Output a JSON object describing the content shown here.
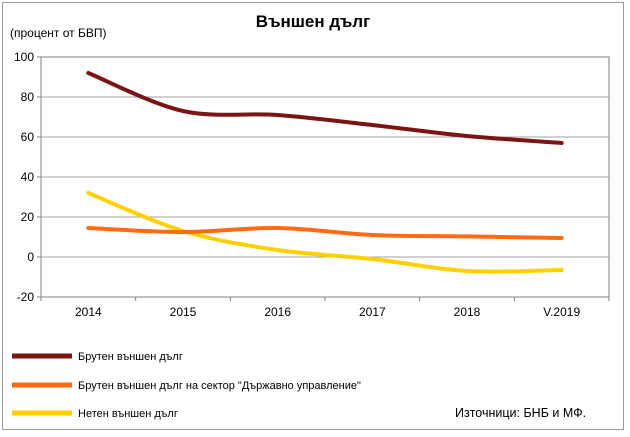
{
  "chart_data": {
    "type": "line",
    "title": "Външен дълг",
    "ylabel": "(процент от БВП)",
    "categories": [
      "2014",
      "2015",
      "2016",
      "2017",
      "2018",
      "V.2019"
    ],
    "ylim": [
      -20,
      100
    ],
    "yticks": [
      "100",
      "80",
      "60",
      "40",
      "20",
      "0",
      "-20"
    ],
    "grid": true,
    "legend_position": "bottom",
    "series": [
      {
        "name": "Брутен външен дълг",
        "color": "#7b1414",
        "values": [
          92,
          73,
          71,
          66,
          60.5,
          57
        ]
      },
      {
        "name": "Брутен външен дълг на сектор \"Държавно управление\"",
        "color": "#ff6a13",
        "values": [
          14.5,
          12.5,
          14.5,
          11,
          10.3,
          9.5
        ]
      },
      {
        "name": "Нетен външен дълг",
        "color": "#ffd000",
        "values": [
          32,
          13,
          3.5,
          -1,
          -7,
          -6.5
        ]
      }
    ],
    "source": "Източници: БНБ и МФ."
  }
}
